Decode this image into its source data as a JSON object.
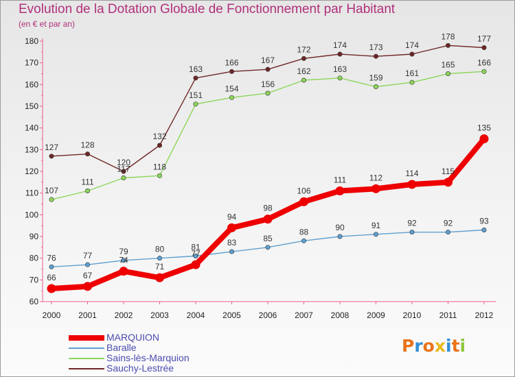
{
  "title": "Evolution de la Dotation Globale de Fonctionnement par Habitant",
  "subtitle": "(en € et par an)",
  "logo": {
    "text": "Proxiti"
  },
  "colors": {
    "marquion": "#ee0000",
    "baralle": "#5e9fd0",
    "sains": "#8cd65a",
    "sauchy": "#6e2626",
    "title": "#b0307a",
    "legend": "#4a4ab0"
  },
  "chart_data": {
    "type": "line",
    "title": "Evolution de la Dotation Globale de Fonctionnement par Habitant",
    "subtitle": "(en € et par an)",
    "xlabel": "",
    "ylabel": "",
    "categories": [
      "2000",
      "2001",
      "2002",
      "2003",
      "2004",
      "2005",
      "2006",
      "2007",
      "2008",
      "2009",
      "2010",
      "2011",
      "2012"
    ],
    "ylim": [
      60,
      180
    ],
    "yticks": [
      60,
      70,
      80,
      90,
      100,
      110,
      120,
      130,
      140,
      150,
      160,
      170,
      180
    ],
    "grid": false,
    "legend": "bottom-left",
    "series": [
      {
        "name": "MARQUION",
        "key": "marquion",
        "values": [
          66,
          67,
          74,
          71,
          77,
          94,
          98,
          106,
          111,
          112,
          114,
          115,
          135
        ]
      },
      {
        "name": "Baralle",
        "key": "baralle",
        "values": [
          76,
          77,
          79,
          80,
          81,
          83,
          85,
          88,
          90,
          91,
          92,
          92,
          93
        ]
      },
      {
        "name": "Sains-lès-Marquion",
        "key": "sains",
        "values": [
          107,
          111,
          117,
          118,
          151,
          154,
          156,
          162,
          163,
          159,
          161,
          165,
          166
        ]
      },
      {
        "name": "Sauchy-Lestrée",
        "key": "sauchy",
        "values": [
          127,
          128,
          120,
          132,
          163,
          166,
          167,
          172,
          174,
          173,
          174,
          178,
          177
        ]
      }
    ]
  }
}
